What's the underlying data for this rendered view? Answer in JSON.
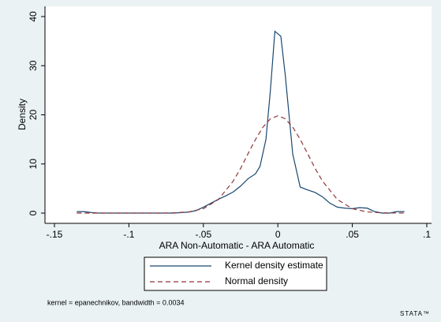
{
  "chart_data": {
    "type": "line",
    "xlabel": "ARA Non-Automatic - ARA Automatic",
    "ylabel": "Density",
    "xlim": [
      -0.15,
      0.1
    ],
    "xticks": [
      {
        "value": -0.15,
        "label": "-.15"
      },
      {
        "value": -0.1,
        "label": "-.1"
      },
      {
        "value": -0.05,
        "label": "-.05"
      },
      0,
      {
        "value": 0.05,
        "label": ".05"
      },
      {
        "value": 0.1,
        "label": ".1"
      }
    ],
    "ylim": [
      0,
      40
    ],
    "yticks": [
      0,
      10,
      20,
      30,
      40
    ],
    "series": [
      {
        "name": "Kernel density estimate",
        "color": "#1a476f",
        "dash": false,
        "x": [
          -0.135,
          -0.13,
          -0.125,
          -0.12,
          -0.1,
          -0.07,
          -0.06,
          -0.055,
          -0.05,
          -0.045,
          -0.04,
          -0.035,
          -0.03,
          -0.025,
          -0.02,
          -0.015,
          -0.012,
          -0.008,
          -0.005,
          -0.002,
          0.002,
          0.005,
          0.01,
          0.015,
          0.02,
          0.025,
          0.03,
          0.035,
          0.04,
          0.045,
          0.05,
          0.055,
          0.06,
          0.065,
          0.07,
          0.075,
          0.08,
          0.085
        ],
        "values": [
          0.3,
          0.3,
          0.1,
          0,
          0,
          0,
          0.2,
          0.5,
          1.2,
          2,
          2.8,
          3.5,
          4.3,
          5.5,
          7,
          8,
          9.5,
          15,
          25,
          37,
          36,
          28,
          12,
          5.3,
          4.7,
          4.2,
          3.3,
          2,
          1.2,
          1,
          0.9,
          1.1,
          1,
          0.3,
          0,
          0,
          0.3,
          0.3
        ]
      },
      {
        "name": "Normal density",
        "color": "#90353b",
        "dash": true,
        "x": [
          -0.135,
          -0.1,
          -0.08,
          -0.07,
          -0.06,
          -0.05,
          -0.04,
          -0.03,
          -0.025,
          -0.02,
          -0.015,
          -0.01,
          -0.005,
          0,
          0.005,
          0.01,
          0.015,
          0.02,
          0.025,
          0.03,
          0.04,
          0.05,
          0.06,
          0.07,
          0.085
        ],
        "values": [
          0,
          0,
          0,
          0.05,
          0.23,
          0.9,
          2.75,
          6.5,
          9.1,
          12.1,
          15,
          17.5,
          19.2,
          19.8,
          19.2,
          17.5,
          15,
          12.1,
          9.1,
          6.5,
          2.75,
          0.9,
          0.23,
          0.05,
          0
        ]
      }
    ],
    "note": "kernel = epanechnikov, bandwidth = 0.0034",
    "logo": "STATA™"
  }
}
